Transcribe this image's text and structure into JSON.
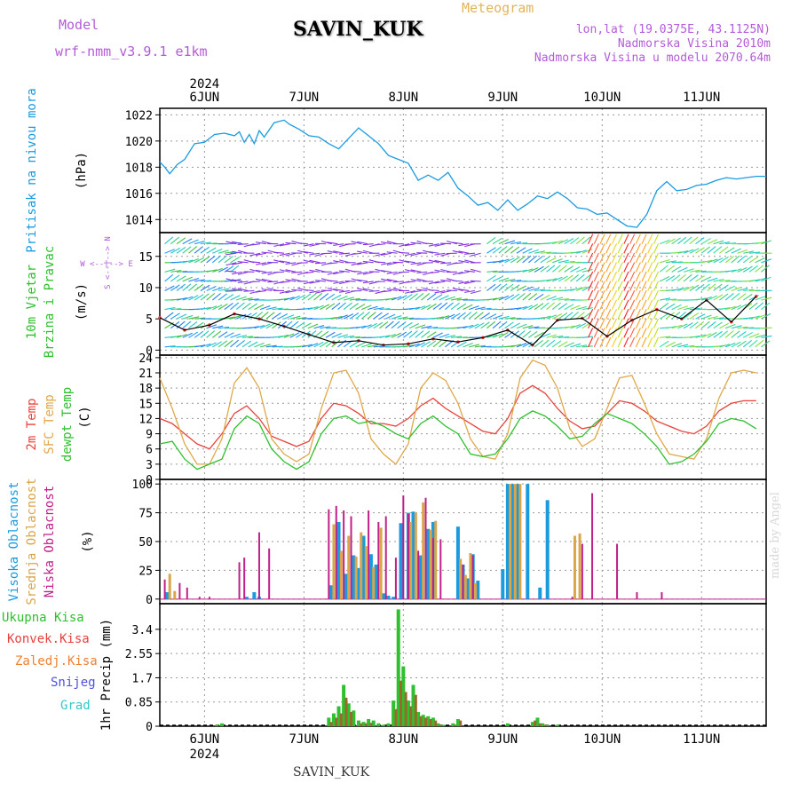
{
  "header": {
    "model_label": "Model",
    "model_name": "wrf-nmm_v3.9.1 e1km",
    "station": "SAVIN_KUK",
    "meteogram": "Meteogram",
    "lonlat": "lon,lat (19.0375E, 43.1125N)",
    "elevation": "Nadmorska Visina 2010m",
    "model_elevation": "Nadmorska Visina u modelu 2070.64m",
    "footer_station": "SAVIN_KUK",
    "credit": "made by Angel"
  },
  "colors": {
    "pressure": "#1a9be0",
    "t2m": "#e8423c",
    "sfc": "#e0a84a",
    "dewpt": "#2ec02e",
    "high_cloud": "#1a9be0",
    "mid_cloud": "#d9a64a",
    "low_cloud": "#c0208a",
    "total_precip": "#2ec02e",
    "conv_precip": "#e84040",
    "frozen_precip": "#f08030",
    "snow": "#5050e0",
    "hail": "#30c8c8",
    "wind_label": "#2ec02e",
    "wind_dir_label": "#b35bd8"
  },
  "chart_data": [
    {
      "type": "line",
      "name": "pressure",
      "ylabel_1": "Pritisak na nivou mora",
      "ylabel_2": "(hPa)",
      "ylim": [
        1013,
        1022.5
      ],
      "yticks": [
        "1014",
        "1016",
        "1018",
        "1020",
        "1022"
      ],
      "x": [
        0,
        0.1,
        0.2,
        0.35,
        0.5,
        0.7,
        0.9,
        1.1,
        1.3,
        1.5,
        1.6,
        1.7,
        1.8,
        1.9,
        2.0,
        2.1,
        2.3,
        2.5,
        2.6,
        2.8,
        3.0,
        3.2,
        3.4,
        3.6,
        3.8,
        4.0,
        4.2,
        4.4,
        4.6,
        4.8,
        5.0,
        5.2,
        5.4,
        5.6,
        5.8,
        6.0,
        6.2,
        6.4,
        6.6,
        6.8,
        7.0,
        7.2,
        7.4,
        7.6,
        7.8,
        8.0,
        8.2,
        8.4,
        8.6,
        8.8,
        9.0,
        9.2,
        9.4,
        9.6,
        9.8,
        10.0,
        10.2,
        10.4,
        10.6,
        10.8,
        11.0,
        11.2,
        11.4,
        11.6,
        11.8,
        12.0,
        12.2
      ],
      "y": [
        1018.4,
        1018.0,
        1017.5,
        1018.2,
        1018.6,
        1019.8,
        1019.9,
        1020.5,
        1020.6,
        1020.4,
        1020.7,
        1019.9,
        1020.5,
        1019.8,
        1020.8,
        1020.3,
        1021.4,
        1021.6,
        1021.3,
        1020.9,
        1020.4,
        1020.3,
        1019.8,
        1019.4,
        1020.2,
        1021.0,
        1020.4,
        1019.8,
        1018.9,
        1018.6,
        1018.3,
        1017.0,
        1017.4,
        1017.0,
        1017.6,
        1016.4,
        1015.8,
        1015.1,
        1015.3,
        1014.7,
        1015.5,
        1014.7,
        1015.2,
        1015.8,
        1015.6,
        1016.1,
        1015.6,
        1014.9,
        1014.8,
        1014.4,
        1014.5,
        1014.0,
        1013.5,
        1013.4,
        1014.4,
        1016.2,
        1016.9,
        1016.2,
        1016.3,
        1016.6,
        1016.7,
        1017.0,
        1017.2,
        1017.1,
        1017.2,
        1017.3,
        1017.3
      ]
    },
    {
      "type": "scatter",
      "name": "wind",
      "ylabel_1": "10m Vjetar",
      "ylabel_2": "Brzina i Pravac",
      "ylabel_3": "(m/s)",
      "dir_legend": "W <--|--> E",
      "dir_legend_2": "S <--|--> N",
      "ylim": [
        -0.8,
        18.8
      ],
      "yticks": [
        "0",
        "5",
        "10",
        "15"
      ],
      "x": [
        0,
        0.5,
        1,
        1.5,
        2,
        2.5,
        3,
        3.5,
        4,
        4.5,
        5,
        5.5,
        6,
        6.5,
        7,
        7.5,
        8,
        8.5,
        9,
        9.5,
        10,
        10.5,
        11,
        11.5,
        12
      ],
      "y": [
        5.2,
        3.2,
        4.0,
        5.8,
        5.0,
        3.8,
        2.5,
        1.2,
        1.5,
        0.8,
        1.0,
        1.8,
        1.3,
        2.0,
        3.2,
        0.8,
        4.8,
        5.1,
        2.2,
        4.8,
        6.5,
        5.0,
        8.0,
        4.5,
        8.6
      ]
    },
    {
      "type": "line",
      "name": "temperature",
      "ylabel_1": "2m Temp",
      "ylabel_2": "SFC Temp",
      "ylabel_3": "dewpt Temp",
      "ylabel_4": "(C)",
      "ylim": [
        0,
        24.5
      ],
      "yticks": [
        "0",
        "3",
        "6",
        "9",
        "12",
        "15",
        "18",
        "21",
        "24"
      ],
      "x": [
        0,
        0.25,
        0.5,
        0.75,
        1,
        1.25,
        1.5,
        1.75,
        2,
        2.25,
        2.5,
        2.75,
        3,
        3.25,
        3.5,
        3.75,
        4,
        4.25,
        4.5,
        4.75,
        5,
        5.25,
        5.5,
        5.75,
        6,
        6.25,
        6.5,
        6.75,
        7,
        7.25,
        7.5,
        7.75,
        8,
        8.25,
        8.5,
        8.75,
        9,
        9.25,
        9.5,
        9.75,
        10,
        10.25,
        10.5,
        10.75,
        11,
        11.25,
        11.5,
        11.75,
        12
      ],
      "series": [
        {
          "name": "2m Temp",
          "values": [
            12.0,
            11.0,
            9.0,
            7.0,
            6.0,
            9.0,
            13.0,
            14.5,
            12.0,
            8.5,
            7.5,
            6.5,
            7.5,
            12.0,
            15.0,
            14.5,
            13.0,
            11.0,
            11.0,
            10.5,
            12.0,
            14.5,
            16.0,
            14.0,
            12.5,
            11.0,
            9.5,
            9.0,
            12.0,
            17.0,
            18.5,
            17.0,
            14.0,
            11.5,
            10.0,
            10.5,
            13.0,
            15.5,
            15.0,
            13.5,
            11.5,
            10.5,
            9.5,
            9.0,
            10.5,
            13.5,
            15.0,
            15.5,
            15.5
          ]
        },
        {
          "name": "SFC Temp",
          "values": [
            20.0,
            14.0,
            7.0,
            3.0,
            3.0,
            8.0,
            19.0,
            22.0,
            18.0,
            8.0,
            5.0,
            3.5,
            5.0,
            14.0,
            21.0,
            21.5,
            17.0,
            8.0,
            5.0,
            3.0,
            7.0,
            18.0,
            21.0,
            19.5,
            15.0,
            8.0,
            4.5,
            4.0,
            9.0,
            20.0,
            23.5,
            22.5,
            18.0,
            10.0,
            6.5,
            8.0,
            14.0,
            20.0,
            20.5,
            15.0,
            9.0,
            5.0,
            4.5,
            4.0,
            8.0,
            16.0,
            21.0,
            21.5,
            21.0
          ]
        },
        {
          "name": "dewpt Temp",
          "values": [
            7.0,
            7.5,
            4.0,
            2.0,
            3.0,
            4.0,
            10.0,
            12.5,
            11.0,
            6.0,
            3.5,
            2.0,
            3.5,
            9.0,
            12.0,
            12.5,
            11.0,
            11.5,
            10.5,
            9.0,
            8.0,
            11.0,
            12.5,
            10.5,
            9.0,
            5.0,
            4.5,
            5.0,
            8.0,
            12.0,
            13.5,
            12.5,
            10.5,
            8.0,
            8.5,
            11.0,
            13.0,
            12.0,
            11.0,
            9.0,
            6.5,
            3.0,
            3.5,
            5.0,
            7.5,
            11.0,
            12.0,
            11.5,
            10.0
          ]
        }
      ]
    },
    {
      "type": "bar",
      "name": "cloud",
      "ylabel_1": "Visoka Oblacnost",
      "ylabel_2": "Srednja Oblacnost",
      "ylabel_3": "Niska Oblacnost",
      "ylabel_4": "(%)",
      "ylim": [
        -4,
        104
      ],
      "yticks": [
        "0",
        "25",
        "50",
        "75",
        "100"
      ],
      "series": [
        {
          "name": "Visoka Oblacnost",
          "x": [
            0.15,
            1.75,
            1.9,
            2.0,
            3.45,
            3.6,
            3.75,
            3.9,
            4.0,
            4.1,
            4.25,
            4.35,
            4.5,
            4.6,
            4.7,
            4.85,
            5.0,
            5.1,
            5.25,
            5.4,
            5.5,
            6.0,
            6.1,
            6.2,
            6.3,
            6.4,
            6.9,
            7.0,
            7.1,
            7.2,
            7.4,
            7.65,
            7.8
          ],
          "values": [
            6,
            2,
            6,
            2,
            12,
            67,
            22,
            38,
            27,
            55,
            39,
            30,
            5,
            3,
            2,
            66,
            75,
            76,
            38,
            61,
            67,
            63,
            30,
            18,
            39,
            16,
            26,
            100,
            100,
            100,
            100,
            10,
            86
          ]
        },
        {
          "name": "Srednja Oblacnost",
          "x": [
            0.2,
            0.3,
            3.5,
            3.65,
            3.8,
            3.95,
            4.05,
            4.15,
            4.3,
            4.45,
            5.05,
            5.15,
            5.3,
            5.45,
            5.55,
            6.05,
            6.15,
            6.25,
            6.35,
            7.05,
            7.15,
            7.25,
            8.35,
            8.45
          ],
          "values": [
            22,
            7,
            65,
            42,
            55,
            37,
            58,
            46,
            28,
            62,
            67,
            75,
            84,
            60,
            68,
            35,
            21,
            40,
            14,
            100,
            100,
            100,
            55,
            57
          ]
        },
        {
          "name": "Niska Oblacnost",
          "x": [
            0.1,
            0.4,
            0.55,
            0.8,
            1.0,
            1.6,
            1.7,
            2.0,
            2.2,
            3.4,
            3.55,
            3.7,
            3.85,
            4.2,
            4.4,
            4.55,
            4.75,
            4.9,
            5.0,
            5.2,
            5.35,
            5.5,
            5.65,
            6.1,
            6.3,
            8.3,
            8.5,
            8.7,
            9.2,
            9.6,
            10.1
          ],
          "values": [
            17,
            14,
            10,
            2,
            2,
            32,
            36,
            58,
            44,
            78,
            81,
            77,
            72,
            77,
            67,
            72,
            36,
            90,
            74,
            42,
            88,
            53,
            52,
            30,
            38,
            2,
            48,
            92,
            48,
            6,
            6
          ]
        }
      ]
    },
    {
      "type": "bar",
      "name": "precip",
      "ylabel_1": "Ukupna Kisa",
      "ylabel_2": "Konvek.Kisa",
      "ylabel_3": "Zaledj.Kisa",
      "ylabel_4": "Snijeg",
      "ylabel_5": "Grad",
      "ylabel_6": "1hr Precip (mm)",
      "ylim": [
        0,
        4.3
      ],
      "yticks": [
        "0",
        "0.85",
        "1.7",
        "2.55",
        "3.4"
      ],
      "xticks": [
        "6JUN",
        "7JUN",
        "8JUN",
        "9JUN",
        "10JUN",
        "11JUN"
      ],
      "x_year": "2024",
      "series": [
        {
          "name": "Ukupna Kisa",
          "x": [
            1.15,
            1.25,
            3.4,
            3.5,
            3.6,
            3.7,
            3.8,
            3.9,
            4.0,
            4.1,
            4.2,
            4.3,
            4.4,
            4.5,
            4.6,
            4.7,
            4.8,
            4.9,
            5.0,
            5.1,
            5.2,
            5.3,
            5.4,
            5.5,
            5.6,
            5.7,
            5.8,
            5.9,
            6.0,
            7.0,
            7.5,
            7.6,
            7.7,
            7.8,
            8.0
          ],
          "values": [
            0.05,
            0.1,
            0.3,
            0.45,
            0.7,
            1.45,
            0.8,
            0.55,
            0.2,
            0.15,
            0.25,
            0.2,
            0.1,
            0.05,
            0.1,
            0.9,
            4.1,
            2.1,
            0.9,
            1.45,
            0.5,
            0.4,
            0.35,
            0.3,
            0.1,
            0.05,
            0.0,
            0.1,
            0.25,
            0.1,
            0.15,
            0.3,
            0.1,
            0.05,
            0.05
          ]
        },
        {
          "name": "Konvek.Kisa",
          "x": [
            3.45,
            3.55,
            3.65,
            3.75,
            3.85,
            4.05,
            4.15,
            4.25,
            4.75,
            4.85,
            4.95,
            5.05,
            5.15,
            5.25,
            5.35,
            5.45,
            5.55,
            5.65,
            5.95,
            6.05,
            7.55,
            7.65,
            7.75
          ],
          "values": [
            0.15,
            0.3,
            0.45,
            1.0,
            0.5,
            0.1,
            0.1,
            0.12,
            0.6,
            1.6,
            1.2,
            0.7,
            1.1,
            0.35,
            0.3,
            0.25,
            0.2,
            0.05,
            0.05,
            0.2,
            0.2,
            0.1,
            0.05
          ]
        }
      ]
    }
  ]
}
